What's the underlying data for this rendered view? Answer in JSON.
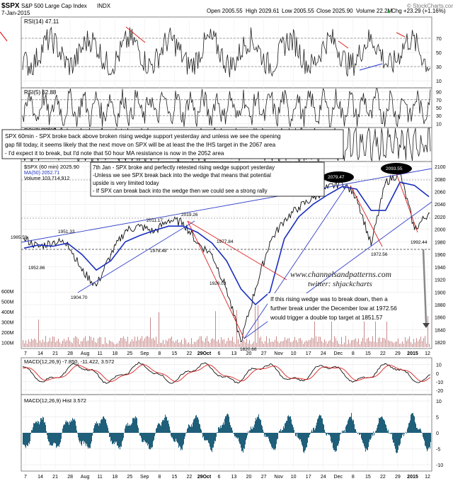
{
  "header": {
    "symbol": "$SPX",
    "name": "S&P 500 Large Cap Index",
    "exchange": "INDX",
    "date": "7-Jan-2015",
    "open_label": "Open 2005.55",
    "high_label": "High 2029.61",
    "low_label": "Low 2005.55",
    "close_label": "Close 2025.90",
    "volume_label": "Volume 22.2M",
    "change_label": "Chg +23.29 (+1.16%)",
    "change_arrow": "▲",
    "copyright": "© StockCharts.com"
  },
  "panels": {
    "rsi14": {
      "label": "RSI(14) 47.11",
      "ticks": [
        "70",
        "50",
        "30",
        "10"
      ]
    },
    "rsi5": {
      "label": "RSI(5) 62.88",
      "ticks": [
        "90",
        "70",
        "50",
        "30",
        "10"
      ]
    },
    "rsi2": {
      "label": "RSI(2) 73.03"
    },
    "price": {
      "label": "$SPX (60 min) 2025.90",
      "ma_label": "MA(50) 2052.71",
      "vol_label": "Volume 103,714,912",
      "ticks": [
        "2100",
        "2080",
        "2060",
        "2040",
        "2020",
        "2000",
        "1980",
        "1960",
        "1940",
        "1920",
        "1900",
        "1880",
        "1860",
        "1840",
        "1820"
      ],
      "vol_ticks": [
        "600M",
        "500M",
        "400M",
        "300M",
        "200M",
        "100M"
      ]
    },
    "macd": {
      "label": "MACD(12,26,9) -7.850, -11.422, 3.572",
      "ticks": [
        "10",
        "0",
        "-10",
        "-20"
      ]
    },
    "hist": {
      "label": "MACD(12,26,9) Hist 3.572",
      "ticks": [
        "10",
        "5",
        "0",
        "-5",
        "-10"
      ]
    }
  },
  "annotations": {
    "box1": [
      "SPX 60min - SPX broke back above broken rising wedge support yesterday and unless we see the opening",
      "gap fill today, it seems likely that the next move on SPX will be at least the the IHS target in the 2067 area",
      "- I'd expect it to break, but I'd note that 50 hour MA resistance is now in the 2052 area"
    ],
    "box2": [
      "7th Jan - SPX broke and perfectly retested rising wedge support yesterday",
      "-Unless we see SPX break back into the wedge that means that potential",
      "upside is very limited today",
      "- If SPX can break back into the wedge then we could see a strong rally"
    ],
    "box3": [
      "If this rising wedge was to break down, then a",
      "further break under the December low at 1972.56",
      "would trigger a double top target at 1851.57"
    ],
    "watermark1": "www.channelsandpatterns.com",
    "watermark2": "twitter: shjackcharts",
    "price_labels": [
      "1985.59",
      "1951.33",
      "1952.86",
      "1904.70",
      "2011.17",
      "2019.26",
      "1978.48",
      "1977.84",
      "1926.03",
      "1820.66",
      "2079.47",
      "2093.55",
      "1972.56",
      "1992.44"
    ]
  },
  "x_axis": {
    "labels": [
      "7",
      "14",
      "21",
      "28",
      "Aug",
      "11",
      "18",
      "25",
      "Sep",
      "8",
      "15",
      "22",
      "29Oct",
      "6",
      "13",
      "20",
      "27",
      "Nov",
      "10",
      "17",
      "24",
      "Dec",
      "8",
      "15",
      "22",
      "29",
      "2015",
      "12"
    ]
  },
  "chart_data": {
    "type": "line",
    "title": "$SPX S&P 500 Large Cap Index INDX",
    "xlabel": "",
    "ylabel": "",
    "ylim": [
      1810,
      2108
    ],
    "x": [
      "Jul 7",
      "Jul 14",
      "Jul 21",
      "Jul 28",
      "Aug 4",
      "Aug 11",
      "Aug 18",
      "Aug 25",
      "Sep 2",
      "Sep 8",
      "Sep 15",
      "Sep 22",
      "Sep 29",
      "Oct 6",
      "Oct 13",
      "Oct 15",
      "Oct 20",
      "Oct 27",
      "Nov 3",
      "Nov 10",
      "Nov 17",
      "Nov 24",
      "Dec 1",
      "Dec 8",
      "Dec 16",
      "Dec 22",
      "Dec 29",
      "Jan 5",
      "Jan 7"
    ],
    "series": [
      {
        "name": "$SPX (60 min)",
        "values": [
          1985,
          1972,
          1980,
          1979,
          1934,
          1910,
          1960,
          1998,
          2005,
          1996,
          2015,
          2011,
          1978,
          1960,
          1905,
          1821,
          1905,
          1980,
          2015,
          2035,
          2050,
          2066,
          2075,
          2052,
          1975,
          2075,
          2090,
          2000,
          2026
        ]
      },
      {
        "name": "MA(50)",
        "values": [
          1970,
          1975,
          1973,
          1978,
          1960,
          1935,
          1950,
          1980,
          1990,
          1998,
          2005,
          2005,
          1995,
          1978,
          1950,
          1905,
          1880,
          1900,
          1985,
          2020,
          2040,
          2055,
          2068,
          2064,
          2030,
          2030,
          2075,
          2070,
          2052
        ]
      }
    ],
    "grid": true
  }
}
